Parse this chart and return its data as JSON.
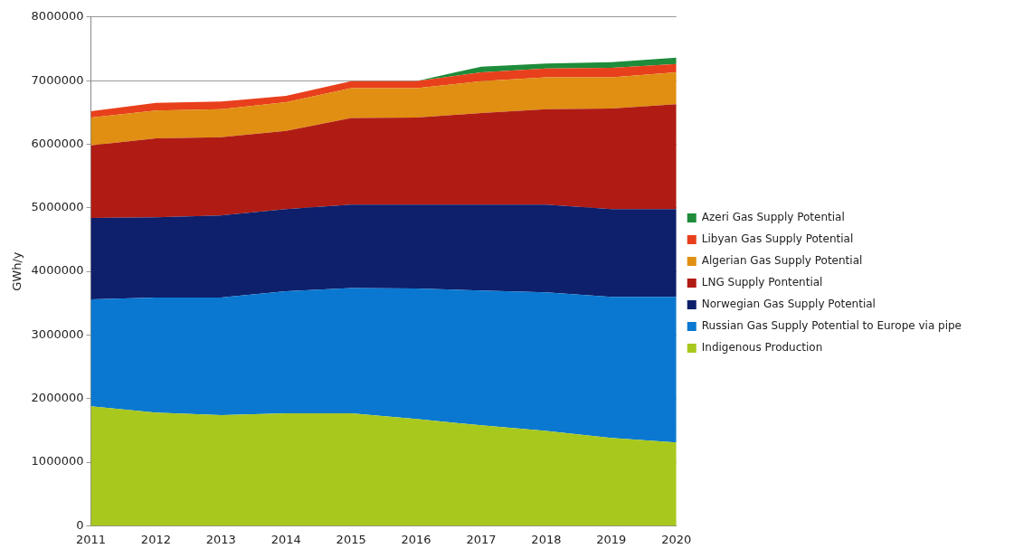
{
  "chart_data": {
    "type": "area",
    "stacked": true,
    "ylabel": "GWh/y",
    "categories": [
      "2011",
      "2012",
      "2013",
      "2014",
      "2015",
      "2016",
      "2017",
      "2018",
      "2019",
      "2020"
    ],
    "series": [
      {
        "name": "Indigenous Production",
        "color": "#a8c81e",
        "values": [
          1880000,
          1780000,
          1740000,
          1770000,
          1770000,
          1680000,
          1580000,
          1490000,
          1380000,
          1310000
        ]
      },
      {
        "name": "Russian Gas Supply Potential to Europe via pipe",
        "color": "#0a78d0",
        "values": [
          1680000,
          1810000,
          1850000,
          1920000,
          1970000,
          2050000,
          2120000,
          2180000,
          2220000,
          2290000
        ]
      },
      {
        "name": "Norwegian Gas Supply Potential",
        "color": "#0e1f6b",
        "values": [
          1280000,
          1260000,
          1290000,
          1290000,
          1310000,
          1320000,
          1350000,
          1380000,
          1380000,
          1380000
        ]
      },
      {
        "name": "LNG Supply Pontential",
        "color": "#b01c14",
        "values": [
          1140000,
          1240000,
          1230000,
          1230000,
          1360000,
          1370000,
          1440000,
          1500000,
          1580000,
          1650000
        ]
      },
      {
        "name": "Algerian Gas Supply Potential",
        "color": "#e08f12",
        "values": [
          440000,
          440000,
          440000,
          450000,
          470000,
          460000,
          500000,
          500000,
          490000,
          500000
        ]
      },
      {
        "name": "Libyan Gas Supply Potential",
        "color": "#e8401c",
        "values": [
          100000,
          120000,
          120000,
          100000,
          110000,
          110000,
          140000,
          140000,
          150000,
          130000
        ]
      },
      {
        "name": "Azeri Gas Supply Potential",
        "color": "#1e8c3a",
        "values": [
          null,
          null,
          null,
          null,
          null,
          0,
          90000,
          80000,
          90000,
          100000
        ]
      }
    ],
    "ylim": [
      0,
      8000000
    ],
    "yticks": [
      0,
      1000000,
      2000000,
      3000000,
      4000000,
      5000000,
      6000000,
      7000000,
      8000000
    ],
    "grid": "y",
    "legend": "right"
  }
}
